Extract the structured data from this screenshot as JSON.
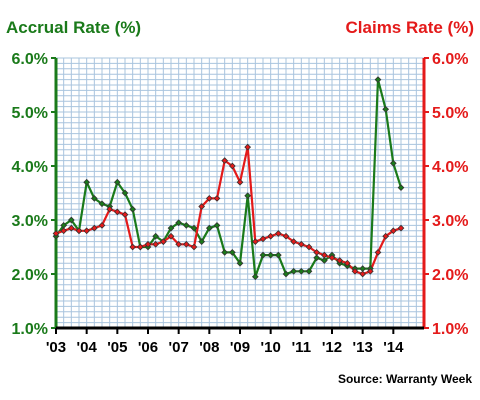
{
  "chart_data": {
    "type": "line",
    "left_axis_title": "Accrual Rate (%)",
    "right_axis_title": "Claims Rate (%)",
    "source": "Source: Warranty Week",
    "ylim": [
      1.0,
      6.0
    ],
    "yticks": [
      "1.0%",
      "2.0%",
      "3.0%",
      "4.0%",
      "5.0%",
      "6.0%"
    ],
    "xlim": [
      0,
      48
    ],
    "xtick_labels": [
      "'03",
      "'04",
      "'05",
      "'06",
      "'07",
      "'08",
      "'09",
      "'10",
      "'11",
      "'12",
      "'13",
      "'14"
    ],
    "grid": true,
    "colors": {
      "accrual": "#1a7a1a",
      "claims": "#e41a1a",
      "grid": "#a9c4de",
      "marker": "#333333"
    },
    "series": [
      {
        "key": "accrual",
        "axis": "left",
        "x": [
          0,
          1,
          2,
          3,
          4,
          5,
          6,
          7,
          8,
          9,
          10,
          11,
          12,
          13,
          14,
          15,
          16,
          17,
          18,
          19,
          20,
          21,
          22,
          23,
          24,
          25,
          26,
          27,
          28,
          29,
          30,
          31,
          32,
          33,
          34,
          35,
          36,
          37,
          38,
          39,
          40,
          41,
          42,
          43,
          44,
          45,
          46,
          47
        ],
        "values": [
          2.7,
          2.9,
          3.0,
          2.8,
          3.7,
          3.4,
          3.3,
          3.25,
          3.7,
          3.5,
          3.2,
          2.5,
          2.5,
          2.7,
          2.6,
          2.85,
          2.95,
          2.9,
          2.85,
          2.6,
          2.85,
          2.9,
          2.4,
          2.4,
          2.2,
          3.45,
          1.95,
          2.35,
          2.35,
          2.35,
          2.0,
          2.05,
          2.05,
          2.05,
          2.3,
          2.25,
          2.35,
          2.2,
          2.15,
          2.1,
          2.1,
          2.1,
          5.6,
          5.05,
          4.05,
          3.6,
          null,
          null
        ]
      },
      {
        "key": "claims",
        "axis": "right",
        "x": [
          0,
          1,
          2,
          3,
          4,
          5,
          6,
          7,
          8,
          9,
          10,
          11,
          12,
          13,
          14,
          15,
          16,
          17,
          18,
          19,
          20,
          21,
          22,
          23,
          24,
          25,
          26,
          27,
          28,
          29,
          30,
          31,
          32,
          33,
          34,
          35,
          36,
          37,
          38,
          39,
          40,
          41,
          42,
          43,
          44,
          45,
          46,
          47
        ],
        "values": [
          2.75,
          2.8,
          2.85,
          2.8,
          2.8,
          2.85,
          2.9,
          3.2,
          3.15,
          3.1,
          2.5,
          2.5,
          2.55,
          2.55,
          2.6,
          2.7,
          2.55,
          2.55,
          2.5,
          3.25,
          3.4,
          3.4,
          4.1,
          4.0,
          3.7,
          4.35,
          2.6,
          2.65,
          2.7,
          2.75,
          2.7,
          2.6,
          2.55,
          2.5,
          2.4,
          2.35,
          2.3,
          2.25,
          2.2,
          2.05,
          2.0,
          2.05,
          2.4,
          2.7,
          2.8,
          2.85,
          null,
          null
        ]
      }
    ]
  }
}
